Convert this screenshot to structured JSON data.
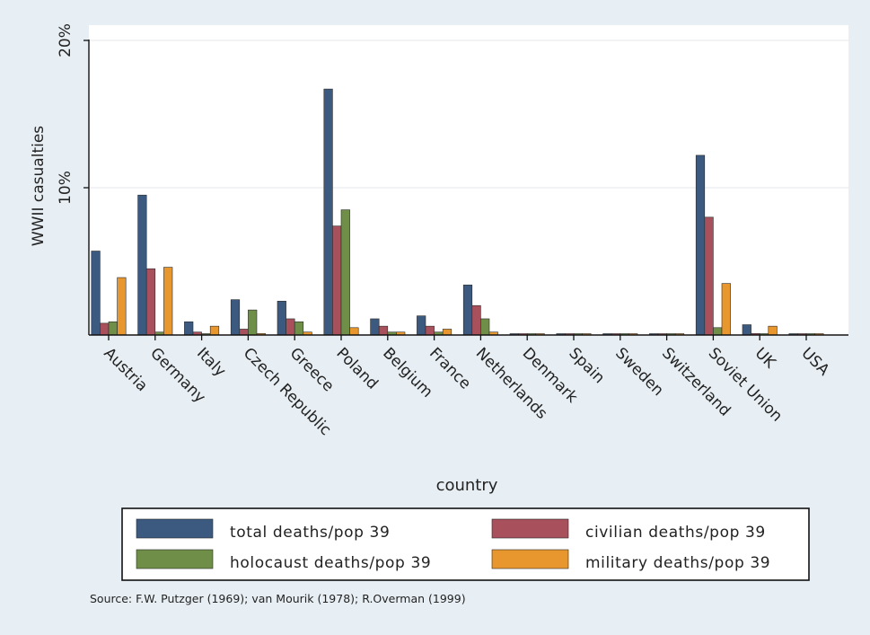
{
  "chart_data": {
    "type": "bar",
    "xlabel": "country",
    "ylabel": "WWII casualties",
    "ylim": [
      0,
      20
    ],
    "yticks": [
      {
        "value": 10,
        "label": "10%"
      },
      {
        "value": 20,
        "label": "20%"
      }
    ],
    "grid": true,
    "legend_position": "bottom",
    "categories": [
      "Austria",
      "Germany",
      "Italy",
      "Czech Republic",
      "Greece",
      "Poland",
      "Belgium",
      "France",
      "Netherlands",
      "Denmark",
      "Spain",
      "Sweden",
      "Switzerland",
      "Soviet Union",
      "UK",
      "USA"
    ],
    "series": [
      {
        "name": "total deaths/pop 39",
        "color": "#3c5a80",
        "values": [
          5.7,
          9.5,
          0.9,
          2.4,
          2.3,
          16.7,
          1.1,
          1.3,
          3.4,
          0.05,
          0.05,
          0.05,
          0.05,
          12.2,
          0.7,
          0.05
        ]
      },
      {
        "name": "civilian deaths/pop 39",
        "color": "#a8505b",
        "values": [
          0.8,
          4.5,
          0.2,
          0.4,
          1.1,
          7.4,
          0.6,
          0.6,
          2.0,
          0.05,
          0.0,
          0.0,
          0.05,
          8.0,
          0.1,
          0.0
        ]
      },
      {
        "name": "holocaust deaths/pop 39",
        "color": "#6f8e48",
        "values": [
          0.9,
          0.2,
          0.05,
          1.7,
          0.9,
          8.5,
          0.2,
          0.2,
          1.1,
          0.05,
          0.0,
          0.05,
          0.05,
          0.5,
          0.0,
          0.0
        ]
      },
      {
        "name": "military deaths/pop 39",
        "color": "#e8962e",
        "values": [
          3.9,
          4.6,
          0.6,
          0.1,
          0.2,
          0.5,
          0.2,
          0.4,
          0.2,
          0.05,
          0.05,
          0.0,
          0.0,
          3.5,
          0.6,
          0.05
        ]
      }
    ],
    "source": "Source: F.W. Putzger (1969); van Mourik (1978); R.Overman (1999)"
  }
}
